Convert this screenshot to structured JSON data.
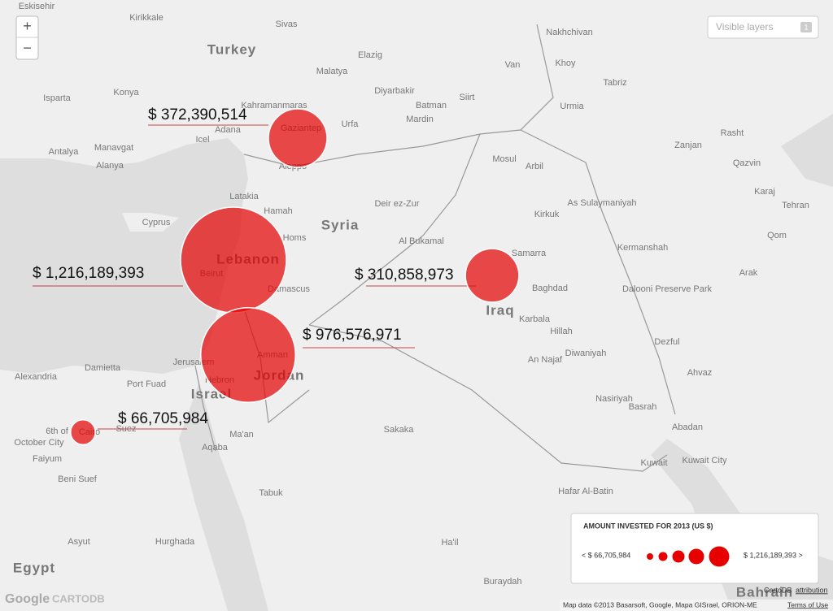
{
  "controls": {
    "zoom_in": "+",
    "zoom_out": "−",
    "layers": "Visible layers",
    "layers_count": "1"
  },
  "countries": [
    "Turkey",
    "Syria",
    "Iraq",
    "Lebanon",
    "Jordan",
    "Israel",
    "Egypt",
    "Bahrain"
  ],
  "places": [
    "Eskisehir",
    "Kirikkale",
    "Sivas",
    "Elazig",
    "Malatya",
    "Van",
    "Konya",
    "Isparta",
    "Diyarbakir",
    "Batman",
    "Siirt",
    "Kahramanmaras",
    "Mardin",
    "Urfa",
    "Adana",
    "Icel",
    "Antalya",
    "Manavgat",
    "Alanya",
    "Aleppo",
    "Mosul",
    "Arbil",
    "Latakia",
    "Hamah",
    "Homs",
    "Deir ez-Zur",
    "As Sulaymaniyah",
    "Kirkuk",
    "Samarra",
    "Baghdad",
    "Beirut",
    "Damascus",
    "Karbala",
    "Hillah",
    "An Najaf",
    "Amman",
    "Jerusalem",
    "Hebron",
    "Alexandria",
    "Damietta",
    "Port Fuad",
    "Suez",
    "Cairo",
    "6th of",
    "October City",
    "Faiyum",
    "Beni Suef",
    "Aqaba",
    "Ma'an",
    "Tabuk",
    "Asyut",
    "Hurghada",
    "Sakaka",
    "Ha'il",
    "Buraydah",
    "Hafar Al-Batin",
    "Basrah",
    "Kuwait City",
    "Kuwait",
    "Abadan",
    "Nasiriyah",
    "Diwaniyah",
    "Ahvaz",
    "Dezful",
    "Kermanshah",
    "Tabriz",
    "Urmia",
    "Zanjan",
    "Rasht",
    "Qazvin",
    "Karaj",
    "Tehran",
    "Qom",
    "Arak",
    "Al Bukamal",
    "Nakhchivan",
    "Khoy",
    "Dalooni Preserve Park",
    "Cyprus",
    "Gaziantep"
  ],
  "investments": {
    "values": [
      372390514,
      1216189393,
      310858973,
      976576971,
      66705984
    ],
    "value_labels": [
      "$ 372,390,514",
      "$ 1,216,189,393",
      "$ 310,858,973",
      "$ 976,576,971",
      "$ 66,705,984"
    ]
  },
  "legend": {
    "title": "AMOUNT INVESTED FOR 2013 (US $)",
    "min_label": "< $ 66,705,984",
    "max_label": "$ 1,216,189,393 >"
  },
  "attribution": {
    "cartodb": "CartoDB",
    "link": "attribution",
    "map_data": "Map data ©2013 Basarsoft, Google, Mapa GISrael, ORION-ME",
    "terms": "Terms of Use",
    "google": "Google",
    "cartodb_logo": "CARTODB"
  }
}
